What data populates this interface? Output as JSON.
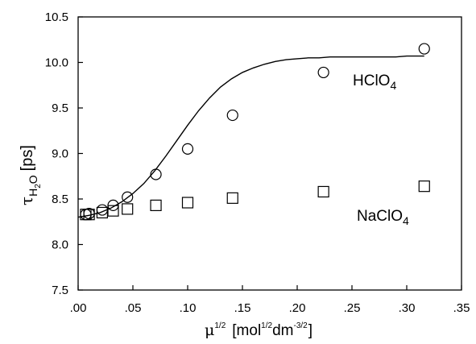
{
  "chart_data": {
    "type": "scatter",
    "title": "",
    "xlabel": {
      "main": "μ",
      "main_sup": "1/2",
      "unit_open": "[mol",
      "unit_sup1": "1/2",
      "unit_mid": "dm",
      "unit_sup2": "-3/2",
      "unit_close": "]"
    },
    "ylabel": {
      "main": "τ",
      "sub": "H",
      "sub2": "2",
      "sub3": "O",
      "unit": "[ps]"
    },
    "xlim": [
      0.0,
      0.35
    ],
    "ylim": [
      7.5,
      10.5
    ],
    "x_ticks": [
      0.0,
      0.05,
      0.1,
      0.15,
      0.2,
      0.25,
      0.3,
      0.35
    ],
    "x_tick_labels": [
      ".00",
      ".05",
      ".10",
      ".15",
      ".20",
      ".25",
      ".30",
      ".35"
    ],
    "y_ticks": [
      7.5,
      8.0,
      8.5,
      9.0,
      9.5,
      10.0,
      10.5
    ],
    "y_tick_labels": [
      "7.5",
      "8.0",
      "8.5",
      "9.0",
      "9.5",
      "10.0",
      "10.5"
    ],
    "grid": false,
    "series": [
      {
        "name": "HClO4",
        "label_main": "HClO",
        "label_sub": "4",
        "marker": "circle",
        "x": [
          0.007,
          0.01,
          0.022,
          0.032,
          0.045,
          0.071,
          0.1,
          0.141,
          0.224,
          0.316
        ],
        "y": [
          8.33,
          8.34,
          8.38,
          8.43,
          8.52,
          8.77,
          9.05,
          9.42,
          9.89,
          10.15
        ]
      },
      {
        "name": "NaClO4",
        "label_main": "NaClO",
        "label_sub": "4",
        "marker": "square",
        "x": [
          0.007,
          0.01,
          0.022,
          0.032,
          0.045,
          0.071,
          0.1,
          0.141,
          0.224,
          0.316
        ],
        "y": [
          8.33,
          8.33,
          8.35,
          8.37,
          8.39,
          8.43,
          8.46,
          8.51,
          8.58,
          8.64
        ]
      }
    ],
    "fit_curve": {
      "series": "HClO4",
      "type": "sigmoid",
      "x": [
        0.0,
        0.01,
        0.02,
        0.03,
        0.04,
        0.05,
        0.06,
        0.07,
        0.08,
        0.09,
        0.1,
        0.11,
        0.12,
        0.13,
        0.14,
        0.15,
        0.16,
        0.17,
        0.18,
        0.19,
        0.2,
        0.21,
        0.22,
        0.23,
        0.24,
        0.25,
        0.26,
        0.27,
        0.28,
        0.29,
        0.3,
        0.31,
        0.316
      ],
      "y": [
        8.3,
        8.32,
        8.35,
        8.4,
        8.47,
        8.56,
        8.67,
        8.81,
        8.97,
        9.14,
        9.31,
        9.47,
        9.61,
        9.73,
        9.82,
        9.89,
        9.94,
        9.98,
        10.01,
        10.03,
        10.04,
        10.05,
        10.05,
        10.06,
        10.06,
        10.06,
        10.06,
        10.06,
        10.06,
        10.06,
        10.07,
        10.07,
        10.07
      ]
    }
  }
}
